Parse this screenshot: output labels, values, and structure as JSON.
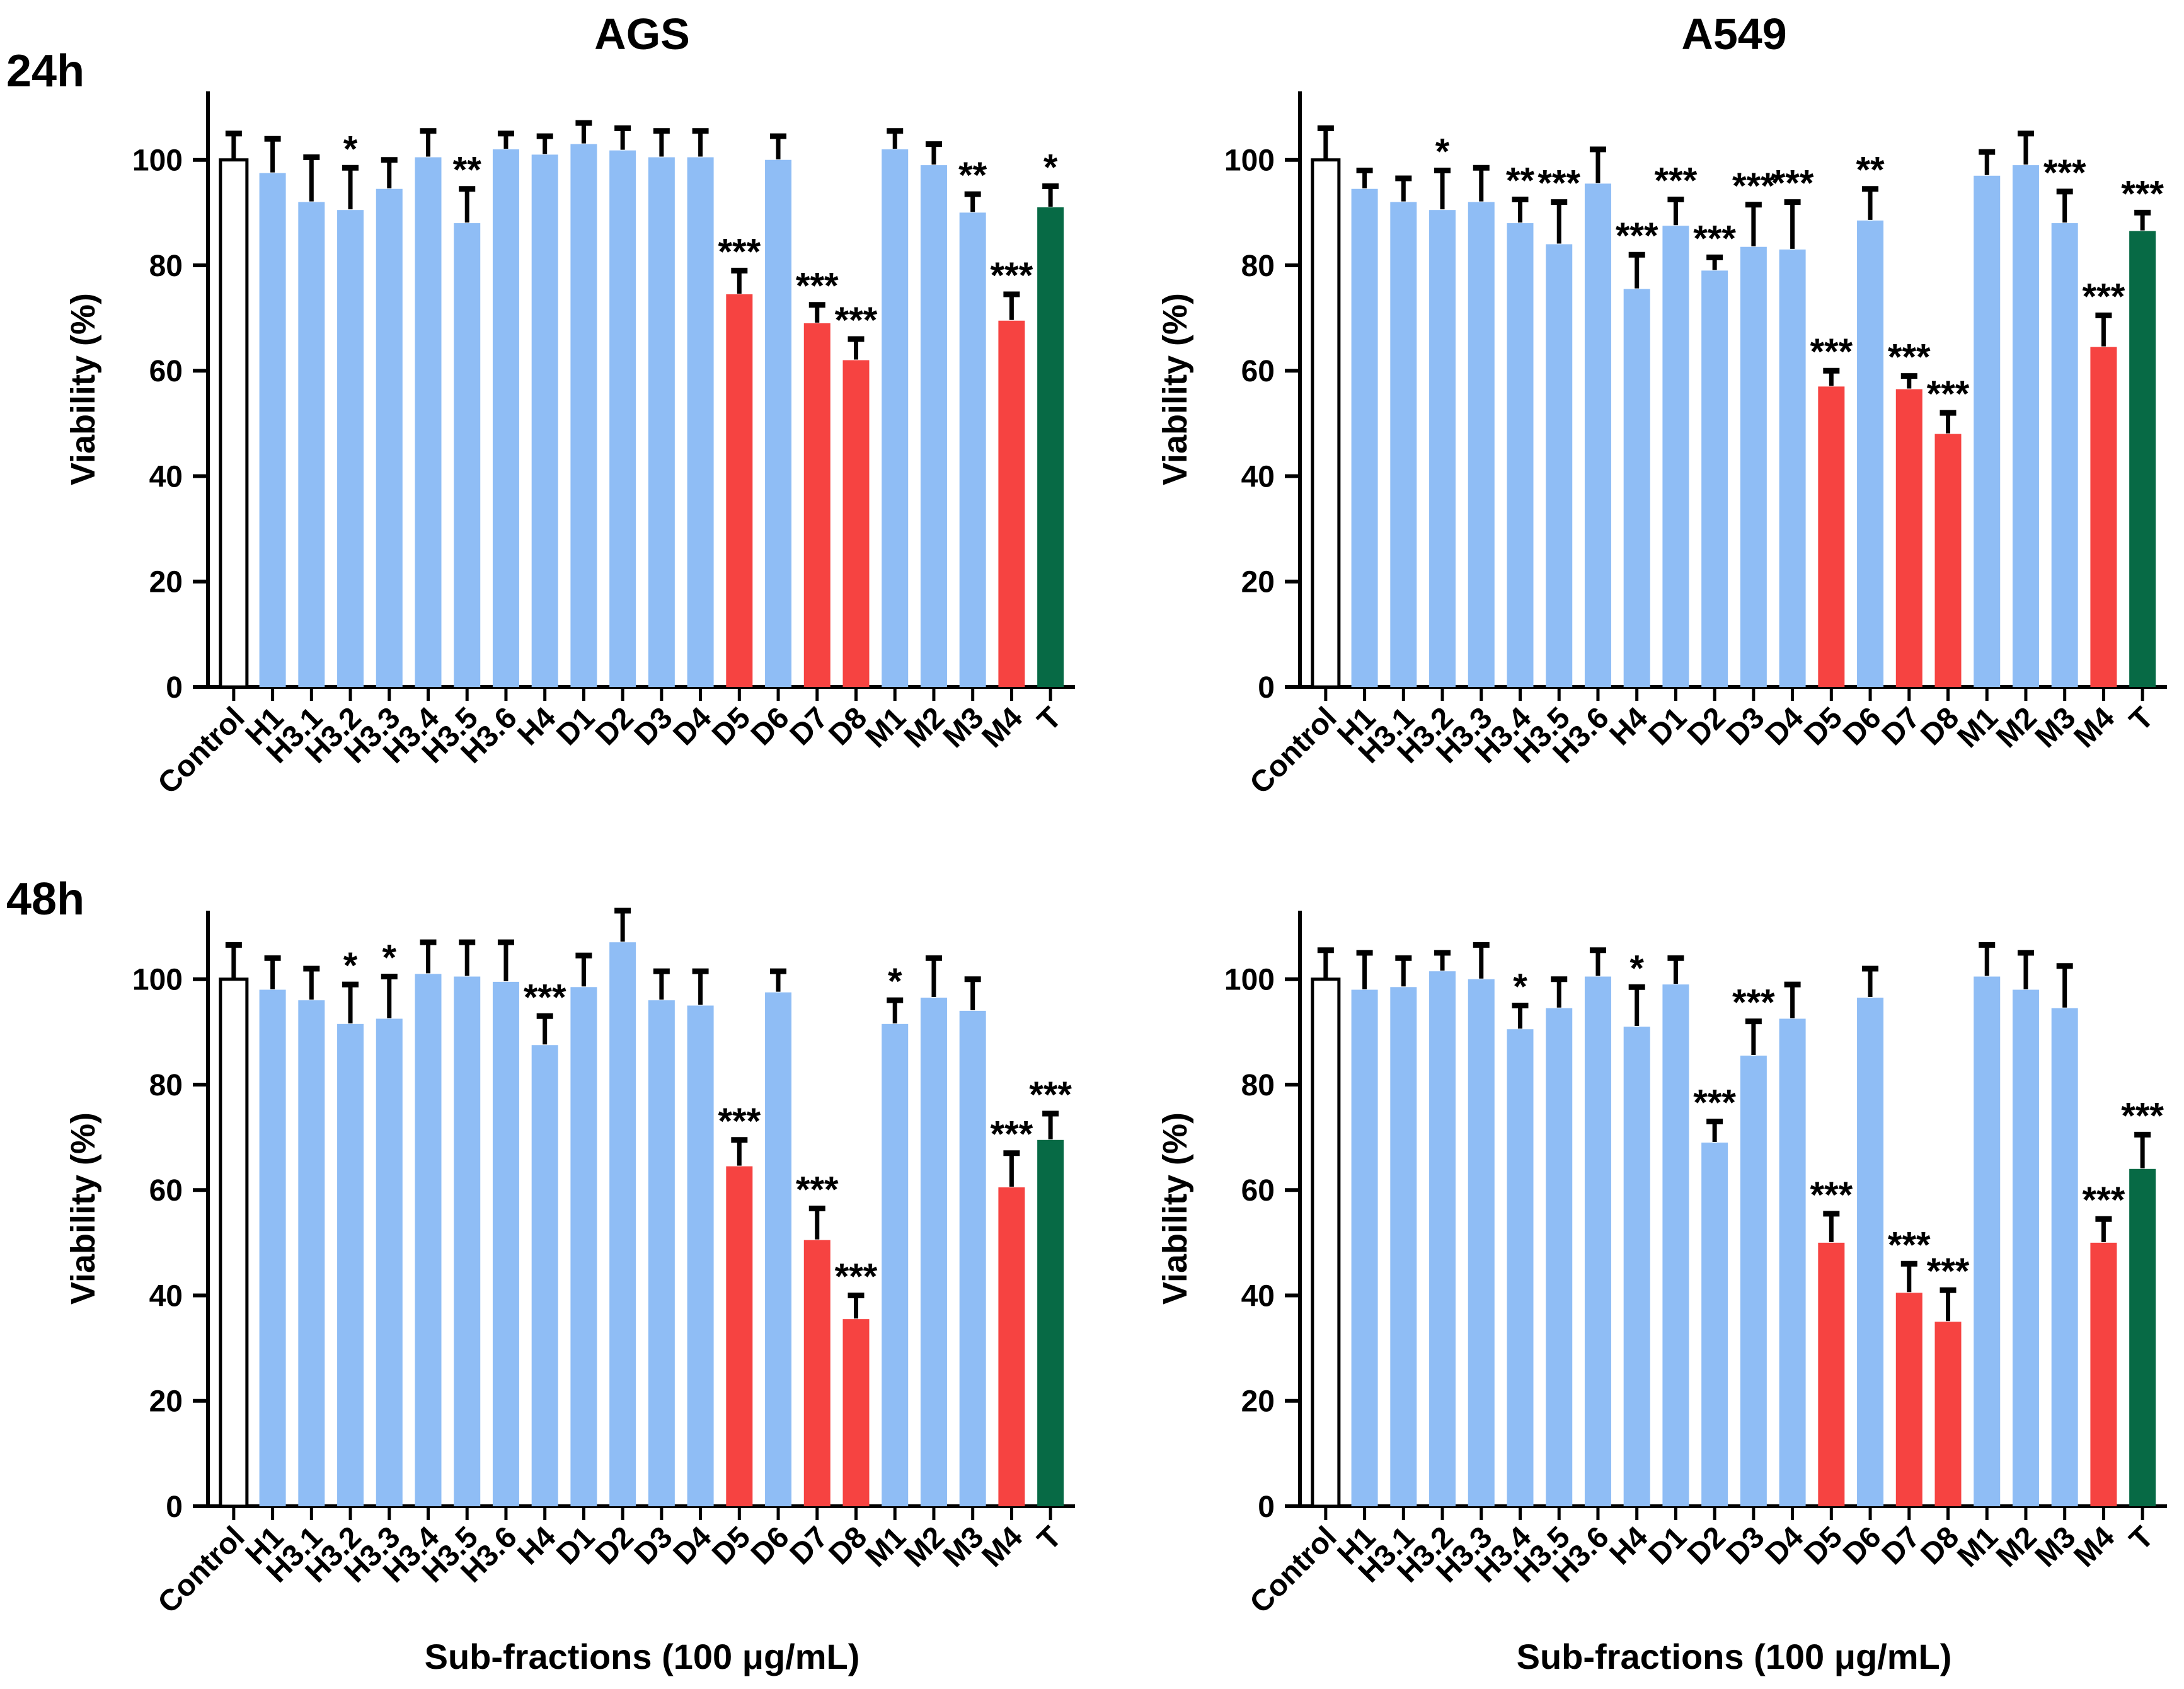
{
  "figure": {
    "row_labels": [
      "24h",
      "48h"
    ],
    "col_titles": [
      "AGS",
      "A549"
    ],
    "y_axis_label": "Viability (%)",
    "x_axis_label": "Sub-fractions (100 μg/mL)",
    "colors": {
      "bar_default": "#8FBDF5",
      "bar_highlight": "#F64341",
      "bar_total": "#076A45",
      "bar_control_fill": "#FFFFFF",
      "axis": "#000000"
    },
    "highlight_categories": [
      "D5",
      "D7",
      "D8",
      "M4"
    ],
    "total_category": "T",
    "control_category": "Control"
  },
  "chart_data": [
    {
      "id": "ags-24h",
      "type": "bar",
      "cell_line": "AGS",
      "timepoint": "24h",
      "ylabel": "Viability (%)",
      "ylim": [
        0,
        113
      ],
      "yticks": [
        0,
        20,
        40,
        60,
        80,
        100
      ],
      "categories": [
        "Control",
        "H1",
        "H3.1",
        "H3.2",
        "H3.3",
        "H3.4",
        "H3.5",
        "H3.6",
        "H4",
        "D1",
        "D2",
        "D3",
        "D4",
        "D5",
        "D6",
        "D7",
        "D8",
        "M1",
        "M2",
        "M3",
        "M4",
        "T"
      ],
      "values": [
        100,
        97.5,
        92,
        90.5,
        94.5,
        100.5,
        88,
        102,
        101,
        103,
        101.8,
        100.5,
        100.5,
        74.5,
        100,
        69,
        62,
        102,
        99,
        90,
        69.5,
        91
      ],
      "errors": [
        5,
        6.5,
        8.5,
        8,
        5.5,
        5,
        6.5,
        3,
        3.5,
        4,
        4.2,
        5,
        5,
        4.5,
        4.5,
        3.5,
        4,
        3.5,
        4,
        3.5,
        5,
        4
      ],
      "significance": [
        "",
        "",
        "",
        "*",
        "",
        "",
        "**",
        "",
        "",
        "",
        "",
        "",
        "",
        "***",
        "",
        "***",
        "***",
        "",
        "",
        "**",
        "***",
        "*"
      ]
    },
    {
      "id": "a549-24h",
      "type": "bar",
      "cell_line": "A549",
      "timepoint": "24h",
      "ylabel": "Viability (%)",
      "ylim": [
        0,
        113
      ],
      "yticks": [
        0,
        20,
        40,
        60,
        80,
        100
      ],
      "categories": [
        "Control",
        "H1",
        "H3.1",
        "H3.2",
        "H3.3",
        "H3.4",
        "H3.5",
        "H3.6",
        "H4",
        "D1",
        "D2",
        "D3",
        "D4",
        "D5",
        "D6",
        "D7",
        "D8",
        "M1",
        "M2",
        "M3",
        "M4",
        "T"
      ],
      "values": [
        100,
        94.5,
        92,
        90.5,
        92,
        88,
        84,
        95.5,
        75.5,
        87.5,
        79,
        83.5,
        83,
        57,
        88.5,
        56.5,
        48,
        97,
        99,
        88,
        64.5,
        86.5
      ],
      "errors": [
        6,
        3.5,
        4.5,
        7.5,
        6.5,
        4.5,
        8,
        6.5,
        6.5,
        5,
        2.5,
        8,
        9,
        3,
        6,
        2.5,
        4,
        4.5,
        6,
        6,
        6,
        3.5
      ],
      "significance": [
        "",
        "",
        "",
        "*",
        "",
        "**",
        "***",
        "",
        "***",
        "***",
        "***",
        "***",
        "***",
        "***",
        "**",
        "***",
        "***",
        "",
        "",
        "***",
        "***",
        "***"
      ]
    },
    {
      "id": "ags-48h",
      "type": "bar",
      "cell_line": "AGS",
      "timepoint": "48h",
      "ylabel": "Viability (%)",
      "ylim": [
        0,
        113
      ],
      "yticks": [
        0,
        20,
        40,
        60,
        80,
        100
      ],
      "categories": [
        "Control",
        "H1",
        "H3.1",
        "H3.2",
        "H3.3",
        "H3.4",
        "H3.5",
        "H3.6",
        "H4",
        "D1",
        "D2",
        "D3",
        "D4",
        "D5",
        "D6",
        "D7",
        "D8",
        "M1",
        "M2",
        "M3",
        "M4",
        "T"
      ],
      "values": [
        100,
        98,
        96,
        91.5,
        92.5,
        101,
        100.5,
        99.5,
        87.5,
        98.5,
        107,
        96,
        95,
        64.5,
        97.5,
        50.5,
        35.5,
        91.5,
        96.5,
        94,
        60.5,
        69.5
      ],
      "errors": [
        6.5,
        6,
        6,
        7.5,
        8,
        6,
        6.5,
        7.5,
        5.5,
        6,
        6,
        5.5,
        6.5,
        5,
        4,
        6,
        4.5,
        4.5,
        7.5,
        6,
        6.5,
        5
      ],
      "significance": [
        "",
        "",
        "",
        "*",
        "*",
        "",
        "",
        "",
        "***",
        "",
        "",
        "",
        "",
        "***",
        "",
        "***",
        "***",
        "*",
        "",
        "",
        "***",
        "***"
      ]
    },
    {
      "id": "a549-48h",
      "type": "bar",
      "cell_line": "A549",
      "timepoint": "48h",
      "ylabel": "Viability (%)",
      "ylim": [
        0,
        113
      ],
      "yticks": [
        0,
        20,
        40,
        60,
        80,
        100
      ],
      "categories": [
        "Control",
        "H1",
        "H3.1",
        "H3.2",
        "H3.3",
        "H3.4",
        "H3.5",
        "H3.6",
        "H4",
        "D1",
        "D2",
        "D3",
        "D4",
        "D5",
        "D6",
        "D7",
        "D8",
        "M1",
        "M2",
        "M3",
        "M4",
        "T"
      ],
      "values": [
        100,
        98,
        98.5,
        101.5,
        100,
        90.5,
        94.5,
        100.5,
        91,
        99,
        69,
        85.5,
        92.5,
        50,
        96.5,
        40.5,
        35,
        100.5,
        98,
        94.5,
        50,
        64
      ],
      "errors": [
        5.5,
        7,
        5.5,
        3.5,
        6.5,
        4.5,
        5.5,
        5,
        7.5,
        5,
        4,
        6.5,
        6.5,
        5.5,
        5.5,
        5.5,
        6,
        6,
        7,
        8,
        4.5,
        6.5
      ],
      "significance": [
        "",
        "",
        "",
        "",
        "",
        "*",
        "",
        "",
        "*",
        "",
        "***",
        "***",
        "",
        "***",
        "",
        "***",
        "***",
        "",
        "",
        "",
        "***",
        "***"
      ]
    }
  ]
}
